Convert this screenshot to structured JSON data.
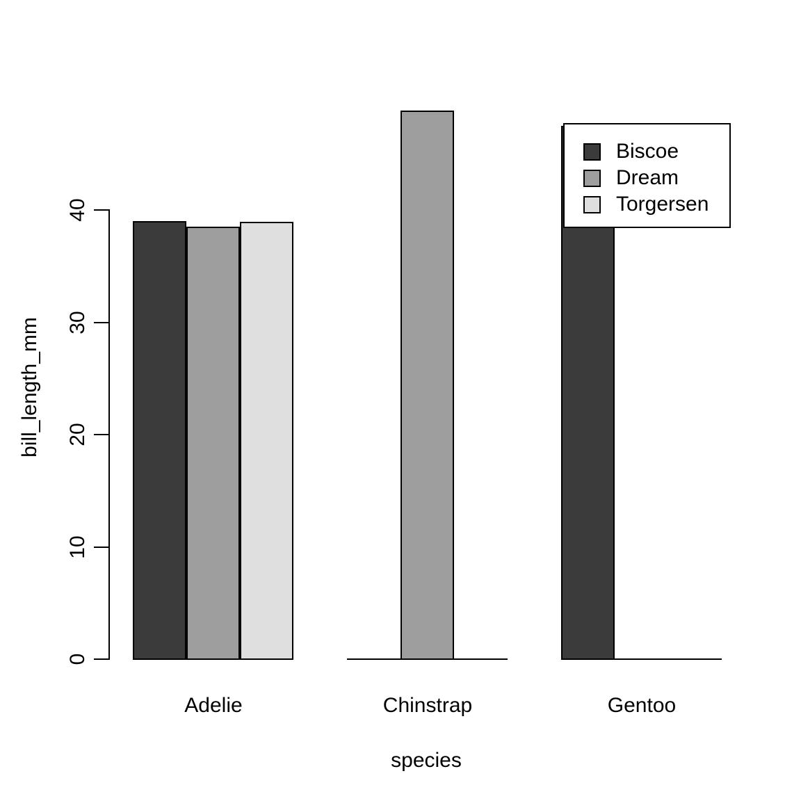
{
  "chart_data": {
    "type": "bar",
    "title": "",
    "xlabel": "species",
    "ylabel": "bill_length_mm",
    "categories": [
      "Adelie",
      "Chinstrap",
      "Gentoo"
    ],
    "series": [
      {
        "name": "Biscoe",
        "color": "#3B3B3C",
        "values": [
          38.98,
          null,
          47.5
        ]
      },
      {
        "name": "Dream",
        "color": "#9E9E9E",
        "values": [
          38.5,
          48.83,
          null
        ]
      },
      {
        "name": "Torgersen",
        "color": "#DFDFDF",
        "values": [
          38.95,
          null,
          null
        ]
      }
    ],
    "y_ticks": [
      0,
      10,
      20,
      30,
      40
    ],
    "y_tick_labels": [
      "0",
      "10",
      "20",
      "30",
      "40"
    ],
    "ylim": [
      0,
      40
    ],
    "grid": false,
    "legend": {
      "position": "top-right",
      "entries": [
        "Biscoe",
        "Dream",
        "Torgersen"
      ]
    },
    "colors": {
      "bar_border": "#000000",
      "axis": "#000000",
      "text": "#000000",
      "background": "#FFFFFF"
    }
  }
}
